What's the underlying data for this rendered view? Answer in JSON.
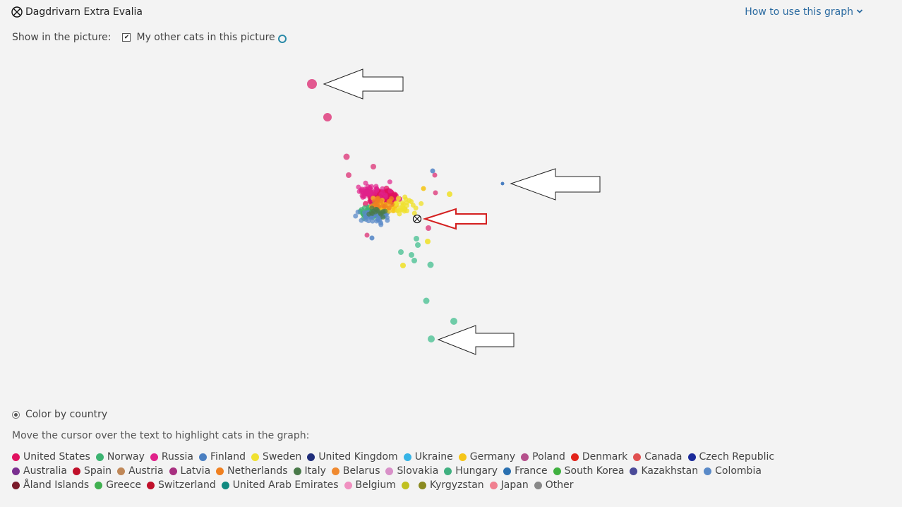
{
  "header": {
    "cat_name": "Dagdrivarn Extra Evalia",
    "cat_icon": "crossed-circle-icon",
    "help_link": "How to use this graph"
  },
  "show_in_picture": {
    "label": "Show in the picture:",
    "option_label": "My other cats in this picture",
    "checked": true
  },
  "color_by": {
    "label": "Color by country",
    "selected": true
  },
  "hint": "Move the cursor over the text to highlight cats in the graph:",
  "legend": [
    [
      {
        "label": "United States",
        "color": "#e0115f"
      },
      {
        "label": "Norway",
        "color": "#3cb371"
      },
      {
        "label": "Russia",
        "color": "#e0218a"
      },
      {
        "label": "Finland",
        "color": "#4a7fc1"
      },
      {
        "label": "Sweden",
        "color": "#f0e130"
      },
      {
        "label": "United Kingdom",
        "color": "#1f2d7a"
      },
      {
        "label": "Ukraine",
        "color": "#36b4e6"
      },
      {
        "label": "Germany",
        "color": "#f5c518"
      },
      {
        "label": "Poland",
        "color": "#b5508c"
      },
      {
        "label": "Denmark",
        "color": "#e2231a"
      },
      {
        "label": "Canada",
        "color": "#e05050"
      },
      {
        "label": "Czech Republic",
        "color": "#1a2a9a"
      }
    ],
    [
      {
        "label": "Australia",
        "color": "#7a3090"
      },
      {
        "label": "Spain",
        "color": "#c0102a"
      },
      {
        "label": "Austria",
        "color": "#c08858"
      },
      {
        "label": "Latvia",
        "color": "#a83080"
      },
      {
        "label": "Netherlands",
        "color": "#f08020"
      },
      {
        "label": "Italy",
        "color": "#4a7a4a"
      },
      {
        "label": "Belarus",
        "color": "#f08a30"
      },
      {
        "label": "Slovakia",
        "color": "#d890c8"
      },
      {
        "label": "Hungary",
        "color": "#40b080"
      },
      {
        "label": "France",
        "color": "#2a70b0"
      },
      {
        "label": "South Korea",
        "color": "#40b040"
      },
      {
        "label": "Kazakhstan",
        "color": "#4a4a98"
      },
      {
        "label": "Colombia",
        "color": "#5a8ac8"
      }
    ],
    [
      {
        "label": "Åland Islands",
        "color": "#7a1a2a"
      },
      {
        "label": "Greece",
        "color": "#40b050"
      },
      {
        "label": "Switzerland",
        "color": "#c0102a"
      },
      {
        "label": "United Arab Emirates",
        "color": "#108a80"
      },
      {
        "label": "Belgium",
        "color": "#f090c0"
      },
      {
        "label": "",
        "color": "#c0c020"
      },
      {
        "label": "Kyrgyzstan",
        "color": "#8a8a20"
      },
      {
        "label": "Japan",
        "color": "#f08090"
      },
      {
        "label": "Other",
        "color": "#888888"
      }
    ]
  ],
  "colors": {
    "accent": "#2a6aa0",
    "highlight_arrow": "#d42020"
  }
}
